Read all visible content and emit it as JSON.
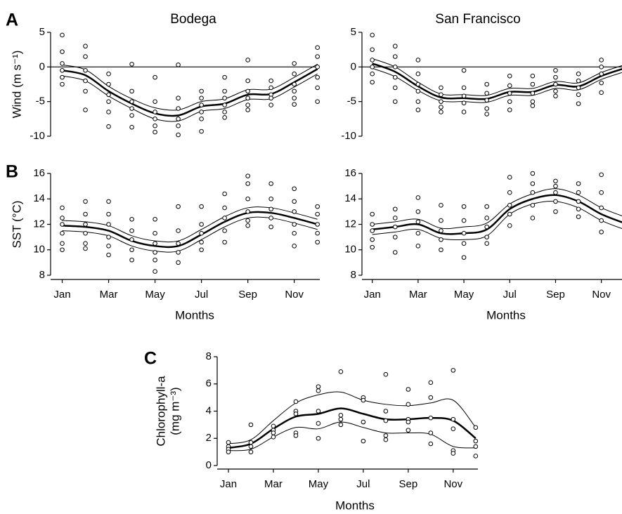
{
  "chart_data": [
    {
      "type": "line",
      "panel": "A",
      "title": "Bodega",
      "ylabel": "Wind (m s⁻¹)",
      "xlim": [
        0.5,
        12.1
      ],
      "ylim": [
        -10,
        5
      ],
      "yticks": [
        -10,
        -5,
        0,
        5
      ],
      "hline": 0,
      "x": [
        1,
        2,
        3,
        4,
        5,
        6,
        7,
        8,
        9,
        10,
        11,
        12
      ],
      "series": [
        {
          "color": "#000",
          "width": 2.5,
          "values": [
            -0.5,
            -1.2,
            -3.5,
            -5.3,
            -6.7,
            -7.0,
            -5.7,
            -5.3,
            -4.0,
            -3.9,
            -2.2,
            -0.3
          ]
        },
        {
          "color": "#000",
          "width": 1,
          "values": [
            0.3,
            -0.4,
            -2.8,
            -4.6,
            -5.9,
            -6.2,
            -5.0,
            -4.6,
            -3.3,
            -3.2,
            -1.5,
            0.4
          ]
        },
        {
          "color": "#000",
          "width": 1,
          "values": [
            -1.3,
            -2.0,
            -4.2,
            -6.0,
            -7.5,
            -7.8,
            -6.4,
            -6.0,
            -4.7,
            -4.6,
            -2.9,
            -1.0
          ]
        }
      ],
      "points": [
        {
          "x": 1,
          "y": [
            4.6,
            2.2,
            0.5,
            -0.5,
            -1.5,
            -2.5
          ]
        },
        {
          "x": 2,
          "y": [
            3,
            1.5,
            -0.5,
            -2,
            -3.5,
            -6.2
          ]
        },
        {
          "x": 3,
          "y": [
            -1,
            -2.5,
            -4,
            -5,
            -6.5,
            -8.6
          ]
        },
        {
          "x": 4,
          "y": [
            0.4,
            -3.5,
            -5,
            -6,
            -7,
            -8.7
          ]
        },
        {
          "x": 5,
          "y": [
            -1.5,
            -5,
            -6.5,
            -7.5,
            -8.5,
            -9.4
          ]
        },
        {
          "x": 6,
          "y": [
            0.3,
            -4.5,
            -6,
            -7.5,
            -8.5,
            -9.8
          ]
        },
        {
          "x": 7,
          "y": [
            -3.5,
            -4.5,
            -5.5,
            -6.5,
            -7.5,
            -9.3
          ]
        },
        {
          "x": 8,
          "y": [
            -1.5,
            -3.5,
            -4.5,
            -5.5,
            -6.5,
            -7.3
          ]
        },
        {
          "x": 9,
          "y": [
            1,
            -2,
            -3.5,
            -4.5,
            -5.5,
            -6.2
          ]
        },
        {
          "x": 10,
          "y": [
            -2,
            -3,
            -4,
            -4.5,
            -5.5
          ]
        },
        {
          "x": 11,
          "y": [
            0.5,
            -1,
            -2.5,
            -3.5,
            -4.5,
            -5.4
          ]
        },
        {
          "x": 12,
          "y": [
            2.8,
            1.5,
            0,
            -1.5,
            -3,
            -5
          ]
        }
      ]
    },
    {
      "type": "line",
      "title": "San Francisco",
      "xlim": [
        0.55,
        11.9
      ],
      "ylim": [
        -10,
        5
      ],
      "yticks": [
        -10,
        -5,
        0,
        5
      ],
      "hline": 0,
      "x": [
        1,
        2,
        3,
        4,
        5,
        6,
        7,
        8,
        9,
        10,
        11,
        12
      ],
      "series": [
        {
          "color": "#000",
          "width": 2.5,
          "values": [
            0.5,
            -0.7,
            -2.8,
            -4.4,
            -4.5,
            -4.6,
            -3.6,
            -3.6,
            -2.6,
            -2.8,
            -1.3,
            -0.2
          ]
        },
        {
          "color": "#000",
          "width": 1,
          "values": [
            1.2,
            0,
            -2.2,
            -3.9,
            -4.0,
            -4.1,
            -3.1,
            -3.1,
            -2.1,
            -2.3,
            -0.8,
            0.3
          ]
        },
        {
          "color": "#000",
          "width": 1,
          "values": [
            -0.2,
            -1.4,
            -3.4,
            -4.9,
            -5.0,
            -5.1,
            -4.1,
            -4.1,
            -3.1,
            -3.3,
            -1.8,
            -0.7
          ]
        }
      ],
      "points": [
        {
          "x": 1,
          "y": [
            4.6,
            2.5,
            1,
            0,
            -1,
            -2.2
          ]
        },
        {
          "x": 2,
          "y": [
            3,
            1.5,
            0,
            -1.5,
            -3,
            -5
          ]
        },
        {
          "x": 3,
          "y": [
            1,
            -1,
            -2.5,
            -3.5,
            -5,
            -6.2
          ]
        },
        {
          "x": 4,
          "y": [
            -3,
            -4,
            -5,
            -5.8,
            -6.5
          ]
        },
        {
          "x": 5,
          "y": [
            -0.5,
            -3,
            -4.2,
            -5.2,
            -6.5
          ]
        },
        {
          "x": 6,
          "y": [
            -2.5,
            -3.8,
            -4.8,
            -6,
            -6.8
          ]
        },
        {
          "x": 7,
          "y": [
            -1.3,
            -2.7,
            -3.8,
            -5,
            -6.2
          ]
        },
        {
          "x": 8,
          "y": [
            -1.3,
            -2.5,
            -3.8,
            -5,
            -5.6
          ]
        },
        {
          "x": 9,
          "y": [
            -0.5,
            -1.5,
            -2.5,
            -3.5,
            -4.2
          ]
        },
        {
          "x": 10,
          "y": [
            -1,
            -2,
            -3,
            -4,
            -5.3
          ]
        },
        {
          "x": 11,
          "y": [
            1,
            0,
            -1,
            -2.3,
            -3.7
          ]
        }
      ]
    },
    {
      "type": "line",
      "panel": "B",
      "ylabel": "SST (°C)",
      "xlabel": "Months",
      "xlim": [
        0.5,
        12.1
      ],
      "ylim": [
        8,
        16
      ],
      "yticks": [
        8,
        10,
        12,
        14,
        16
      ],
      "xticks": [
        {
          "value": 1,
          "label": "Jan"
        },
        {
          "value": 3,
          "label": "Mar"
        },
        {
          "value": 5,
          "label": "May"
        },
        {
          "value": 7,
          "label": "Jul"
        },
        {
          "value": 9,
          "label": "Sep"
        },
        {
          "value": 11,
          "label": "Nov"
        }
      ],
      "x": [
        1,
        2,
        3,
        4,
        5,
        6,
        7,
        8,
        9,
        10,
        11,
        12
      ],
      "series": [
        {
          "color": "#000",
          "width": 2.5,
          "values": [
            11.9,
            11.8,
            11.5,
            10.7,
            10.3,
            10.3,
            11.2,
            12.2,
            12.9,
            12.9,
            12.5,
            12.0
          ]
        },
        {
          "color": "#000",
          "width": 1,
          "values": [
            12.3,
            12.2,
            11.9,
            11.1,
            10.7,
            10.7,
            11.6,
            12.6,
            13.3,
            13.3,
            12.9,
            12.4
          ]
        },
        {
          "color": "#000",
          "width": 1,
          "values": [
            11.5,
            11.4,
            11.1,
            10.3,
            9.9,
            9.9,
            10.8,
            11.8,
            12.5,
            12.5,
            12.1,
            11.6
          ]
        }
      ],
      "points": [
        {
          "x": 1,
          "y": [
            13.3,
            12.5,
            12,
            11.3,
            10.5,
            10
          ]
        },
        {
          "x": 2,
          "y": [
            13.8,
            12.8,
            12,
            11.3,
            10.5,
            10.1
          ]
        },
        {
          "x": 3,
          "y": [
            13.8,
            12.8,
            12,
            11,
            10.3,
            9.6
          ]
        },
        {
          "x": 4,
          "y": [
            12.4,
            11.5,
            10.8,
            10,
            9.2
          ]
        },
        {
          "x": 5,
          "y": [
            12.4,
            11.3,
            10.5,
            9.8,
            9.2,
            8.3
          ]
        },
        {
          "x": 6,
          "y": [
            13.4,
            11.5,
            10.5,
            9.8,
            9
          ]
        },
        {
          "x": 7,
          "y": [
            13.4,
            12,
            11.3,
            10.6,
            10
          ]
        },
        {
          "x": 8,
          "y": [
            14.4,
            13.3,
            12.5,
            11.5,
            10.6
          ]
        },
        {
          "x": 9,
          "y": [
            15.8,
            15.2,
            14,
            13,
            12.3,
            11.9
          ]
        },
        {
          "x": 10,
          "y": [
            15.2,
            14,
            13.2,
            12.5,
            11.8
          ]
        },
        {
          "x": 11,
          "y": [
            14.8,
            13.8,
            13,
            12,
            11.3,
            10.3
          ]
        },
        {
          "x": 12,
          "y": [
            13.4,
            12.8,
            12,
            11.3,
            10.6
          ]
        }
      ]
    },
    {
      "type": "line",
      "xlabel": "Months",
      "xlim": [
        0.55,
        11.9
      ],
      "ylim": [
        8,
        16
      ],
      "yticks": [
        8,
        10,
        12,
        14,
        16
      ],
      "xticks": [
        {
          "value": 1,
          "label": "Jan"
        },
        {
          "value": 3,
          "label": "Mar"
        },
        {
          "value": 5,
          "label": "May"
        },
        {
          "value": 7,
          "label": "Jul"
        },
        {
          "value": 9,
          "label": "Sep"
        },
        {
          "value": 11,
          "label": "Nov"
        }
      ],
      "x": [
        1,
        2,
        3,
        4,
        5,
        6,
        7,
        8,
        9,
        10,
        11,
        12
      ],
      "series": [
        {
          "color": "#000",
          "width": 2.5,
          "values": [
            11.6,
            11.8,
            12.0,
            11.3,
            11.3,
            11.6,
            13.2,
            14.0,
            14.3,
            13.8,
            12.8,
            12.1
          ]
        },
        {
          "color": "#000",
          "width": 1,
          "values": [
            12.0,
            12.2,
            12.4,
            11.7,
            11.8,
            12.1,
            13.6,
            14.4,
            14.8,
            14.3,
            13.3,
            12.6
          ]
        },
        {
          "color": "#000",
          "width": 1,
          "values": [
            11.2,
            11.4,
            11.6,
            10.9,
            10.8,
            11.1,
            12.8,
            13.6,
            13.8,
            13.3,
            12.3,
            11.6
          ]
        }
      ],
      "points": [
        {
          "x": 1,
          "y": [
            12.8,
            12,
            11.5,
            10.8,
            10.2
          ]
        },
        {
          "x": 2,
          "y": [
            13.2,
            12.5,
            11.8,
            11,
            9.8
          ]
        },
        {
          "x": 3,
          "y": [
            14.1,
            13,
            12.2,
            11.3,
            10.3
          ]
        },
        {
          "x": 4,
          "y": [
            13.5,
            12.3,
            11.5,
            10.8,
            10
          ]
        },
        {
          "x": 5,
          "y": [
            13.4,
            12.3,
            11.3,
            10.5,
            9.4
          ]
        },
        {
          "x": 6,
          "y": [
            13.4,
            12.5,
            11.8,
            11,
            10.5
          ]
        },
        {
          "x": 7,
          "y": [
            15.7,
            14.5,
            13.5,
            12.8,
            11.9
          ]
        },
        {
          "x": 8,
          "y": [
            16,
            15.2,
            14.5,
            13.5,
            12.5
          ]
        },
        {
          "x": 9,
          "y": [
            15.4,
            15,
            14.5,
            13.8,
            13
          ]
        },
        {
          "x": 10,
          "y": [
            15.2,
            14.5,
            13.8,
            13.2,
            12.6
          ]
        },
        {
          "x": 11,
          "y": [
            15.9,
            14.5,
            13.3,
            12.3,
            11.4
          ]
        }
      ]
    },
    {
      "type": "line",
      "panel": "C",
      "ylabel": [
        "Chlorophyll-a",
        "(mg m⁻³)"
      ],
      "xlabel": "Months",
      "xlim": [
        0.5,
        12.1
      ],
      "ylim": [
        0,
        8
      ],
      "yticks": [
        0,
        2,
        4,
        6,
        8
      ],
      "xticks": [
        {
          "value": 1,
          "label": "Jan"
        },
        {
          "value": 3,
          "label": "Mar"
        },
        {
          "value": 5,
          "label": "May"
        },
        {
          "value": 7,
          "label": "Jul"
        },
        {
          "value": 9,
          "label": "Sep"
        },
        {
          "value": 11,
          "label": "Nov"
        }
      ],
      "x": [
        1,
        2,
        3,
        4,
        5,
        6,
        7,
        8,
        9,
        10,
        11,
        12
      ],
      "series": [
        {
          "color": "#000",
          "width": 2.5,
          "values": [
            1.3,
            1.6,
            2.7,
            3.6,
            3.8,
            4.2,
            3.8,
            3.4,
            3.4,
            3.5,
            3.3,
            2.0
          ]
        },
        {
          "color": "#000",
          "width": 1,
          "values": [
            1.6,
            1.9,
            3.3,
            4.6,
            5.2,
            5.4,
            4.8,
            4.5,
            4.4,
            4.6,
            4.8,
            2.8
          ]
        },
        {
          "color": "#000",
          "width": 1,
          "values": [
            1.1,
            1.2,
            2.1,
            2.8,
            2.7,
            3.2,
            2.8,
            2.4,
            2.4,
            2.3,
            1.4,
            1.3
          ]
        }
      ],
      "points": [
        {
          "x": 1,
          "y": [
            1.7,
            1.4,
            1.2,
            1.0
          ]
        },
        {
          "x": 2,
          "y": [
            3.0,
            1.7,
            1.4,
            1.0
          ]
        },
        {
          "x": 3,
          "y": [
            2.9,
            2.6,
            2.4,
            2.1
          ]
        },
        {
          "x": 4,
          "y": [
            4.7,
            4.0,
            3.8,
            2.4,
            2.2
          ]
        },
        {
          "x": 5,
          "y": [
            5.8,
            5.5,
            4.0,
            3.1,
            2.0
          ]
        },
        {
          "x": 6,
          "y": [
            6.9,
            3.7,
            3.4,
            3.0
          ]
        },
        {
          "x": 7,
          "y": [
            5.0,
            4.8,
            3.2,
            1.8
          ]
        },
        {
          "x": 8,
          "y": [
            6.7,
            4.0,
            3.3,
            2.2,
            1.9
          ]
        },
        {
          "x": 9,
          "y": [
            5.6,
            4.5,
            3.4,
            3.2,
            2.6
          ]
        },
        {
          "x": 10,
          "y": [
            6.1,
            5.0,
            3.5,
            2.4,
            1.6
          ]
        },
        {
          "x": 11,
          "y": [
            7.0,
            3.4,
            2.7,
            1.1,
            0.9
          ]
        },
        {
          "x": 12,
          "y": [
            2.8,
            1.8,
            1.4,
            0.7
          ]
        }
      ]
    }
  ]
}
